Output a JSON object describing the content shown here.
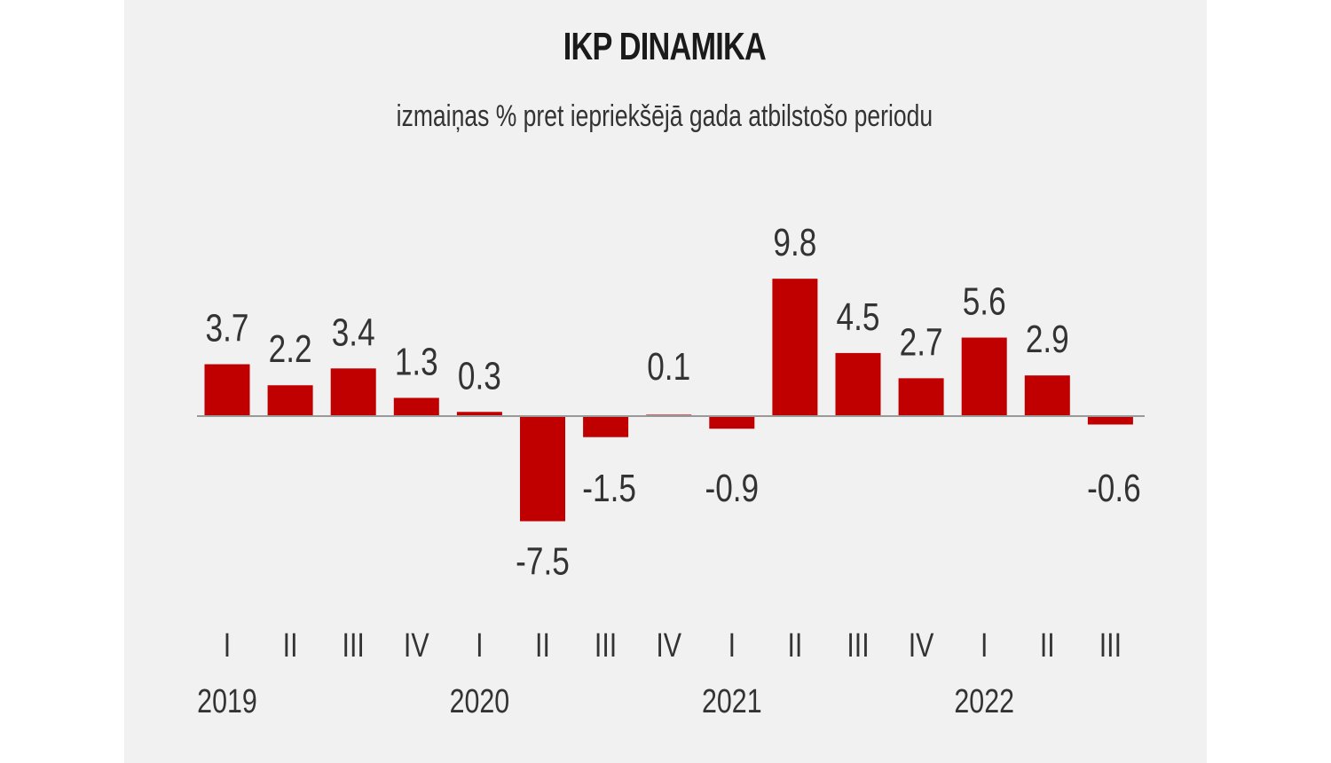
{
  "chart_data": {
    "type": "bar",
    "title": "IKP DINAMIKA",
    "subtitle": "izmaiņas % pret iepriekšējā gada atbilstošo periodu",
    "categories": [
      "I",
      "II",
      "III",
      "IV",
      "I",
      "II",
      "III",
      "IV",
      "I",
      "II",
      "III",
      "IV",
      "I",
      "II",
      "III"
    ],
    "years": [
      {
        "label": "2019",
        "index": 0
      },
      {
        "label": "2020",
        "index": 4
      },
      {
        "label": "2021",
        "index": 8
      },
      {
        "label": "2022",
        "index": 12
      }
    ],
    "values": [
      3.7,
      2.2,
      3.4,
      1.3,
      0.3,
      -7.5,
      -1.5,
      0.1,
      -0.9,
      9.8,
      4.5,
      2.7,
      5.6,
      2.9,
      -0.6
    ],
    "value_labels": [
      "3.7",
      "2.2",
      "3.4",
      "1.3",
      "0.3",
      "-7.5",
      "-1.5",
      "0.1",
      "-0.9",
      "9.8",
      "4.5",
      "2.7",
      "5.6",
      "2.9",
      "-0.6"
    ],
    "xlabel": "",
    "ylabel": "",
    "bar_color": "#c00000",
    "axis_color": "#999999"
  }
}
